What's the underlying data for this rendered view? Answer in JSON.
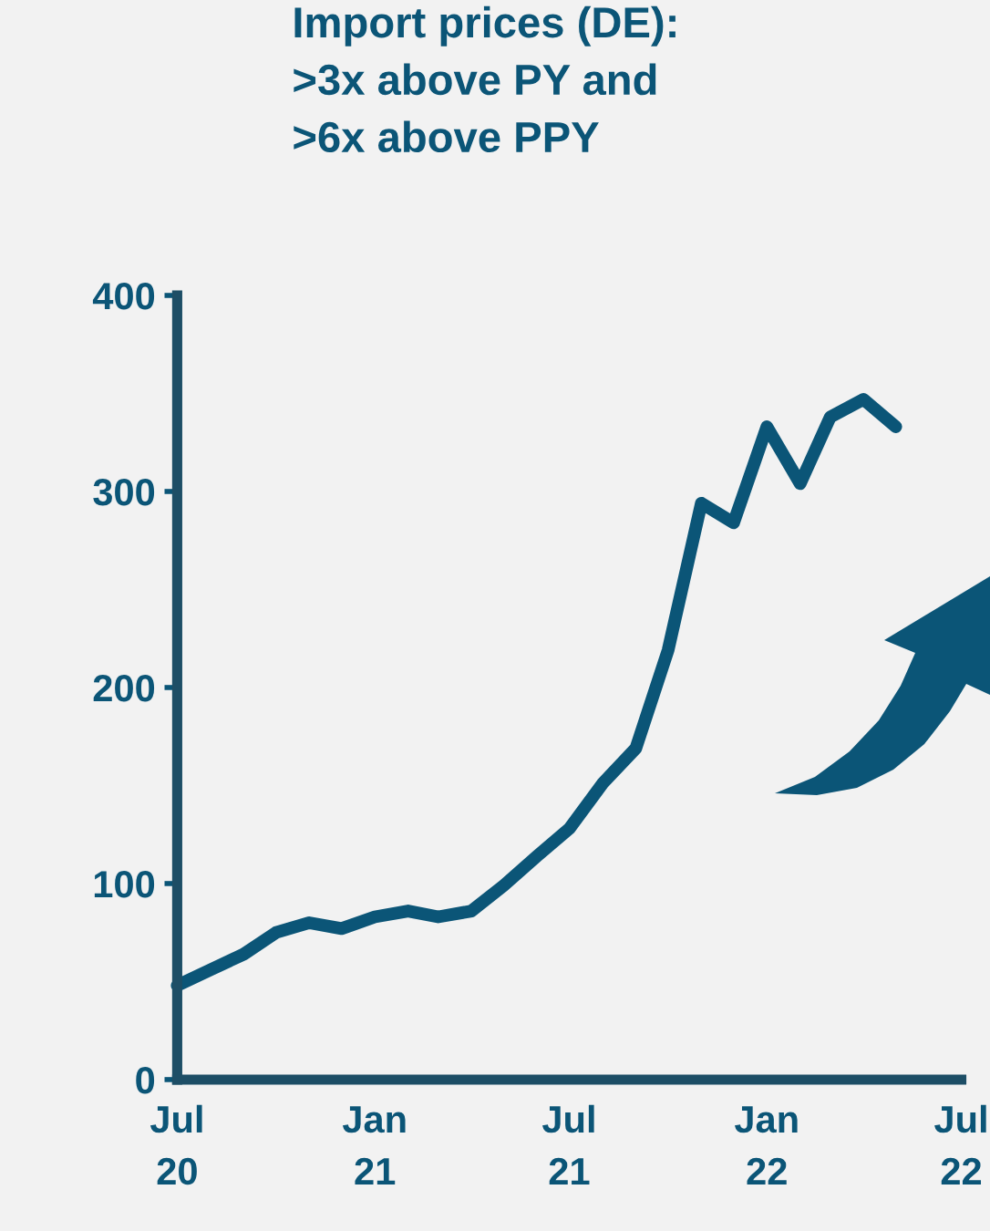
{
  "chart_data": {
    "type": "line",
    "title": "Import prices (DE):\n>3x above PY and\n>6x above PPY",
    "x": [
      "2020-07",
      "2020-08",
      "2020-09",
      "2020-10",
      "2020-11",
      "2020-12",
      "2021-01",
      "2021-02",
      "2021-03",
      "2021-04",
      "2021-05",
      "2021-06",
      "2021-07",
      "2021-08",
      "2021-09",
      "2021-10",
      "2021-11",
      "2021-12",
      "2022-01",
      "2022-02",
      "2022-03",
      "2022-04",
      "2022-05"
    ],
    "series": [
      {
        "color": "#0b5577",
        "values": [
          48,
          56,
          64,
          75,
          80,
          77,
          83,
          86,
          83,
          86,
          99,
          114,
          128,
          151,
          169,
          219,
          294,
          284,
          333,
          304,
          338,
          347,
          333
        ]
      }
    ],
    "xlim": [
      "2020-07",
      "2022-07"
    ],
    "xticks": [
      {
        "value": "2020-07",
        "label": "Jul\n20"
      },
      {
        "value": "2021-01",
        "label": "Jan\n21"
      },
      {
        "value": "2021-07",
        "label": "Jul\n21"
      },
      {
        "value": "2022-01",
        "label": "Jan\n22"
      },
      {
        "value": "2022-07",
        "label": "Jul\n22"
      }
    ],
    "ylim": [
      0,
      400
    ],
    "yticks": [
      0,
      100,
      200,
      300,
      400
    ],
    "grid": false,
    "legend": false,
    "marker": "none",
    "line_style": "solid"
  }
}
